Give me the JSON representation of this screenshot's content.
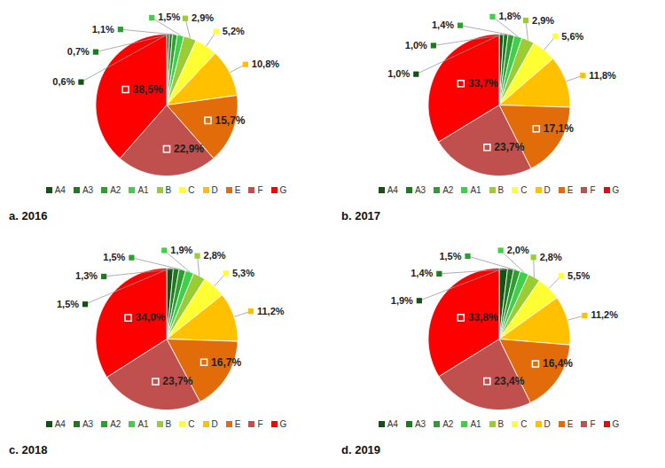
{
  "chart_data": [
    {
      "type": "pie",
      "title": "a. 2016",
      "categories": [
        "A4",
        "A3",
        "A2",
        "A1",
        "B",
        "C",
        "D",
        "E",
        "F",
        "G"
      ],
      "values": [
        0.6,
        0.7,
        1.1,
        1.5,
        2.9,
        5.2,
        10.8,
        15.7,
        22.9,
        38.5
      ],
      "value_labels": [
        "0,6%",
        "0,7%",
        "1,1%",
        "1,5%",
        "2,9%",
        "5,2%",
        "10,8%",
        "15,7%",
        "22,9%",
        "38,5%"
      ],
      "colors": [
        "#145214",
        "#1e7a1e",
        "#2e9e2e",
        "#3fd04a",
        "#9acd32",
        "#ffff33",
        "#ffc000",
        "#e36c0a",
        "#c0504d",
        "#ff0000"
      ],
      "data_labels": true,
      "legend": "bottom"
    },
    {
      "type": "pie",
      "title": "b. 2017",
      "categories": [
        "A4",
        "A3",
        "A2",
        "A1",
        "B",
        "C",
        "D",
        "E",
        "F",
        "G"
      ],
      "values": [
        1.0,
        1.0,
        1.4,
        1.8,
        2.9,
        5.6,
        11.8,
        17.1,
        23.7,
        33.7
      ],
      "value_labels": [
        "1,0%",
        "1,0%",
        "1,4%",
        "1,8%",
        "2,9%",
        "5,6%",
        "11,8%",
        "17,1%",
        "23,7%",
        "33,7%"
      ],
      "colors": [
        "#145214",
        "#1e7a1e",
        "#2e9e2e",
        "#3fd04a",
        "#9acd32",
        "#ffff33",
        "#ffc000",
        "#e36c0a",
        "#c0504d",
        "#ff0000"
      ],
      "data_labels": true,
      "legend": "bottom"
    },
    {
      "type": "pie",
      "title": "c. 2018",
      "categories": [
        "A4",
        "A3",
        "A2",
        "A1",
        "B",
        "C",
        "D",
        "E",
        "F",
        "G"
      ],
      "values": [
        1.5,
        1.3,
        1.5,
        1.9,
        2.8,
        5.3,
        11.2,
        16.7,
        23.7,
        34.0
      ],
      "value_labels": [
        "1,5%",
        "1,3%",
        "1,5%",
        "1,9%",
        "2,8%",
        "5,3%",
        "11,2%",
        "16,7%",
        "23,7%",
        "34,0%"
      ],
      "colors": [
        "#145214",
        "#1e7a1e",
        "#2e9e2e",
        "#3fd04a",
        "#9acd32",
        "#ffff33",
        "#ffc000",
        "#e36c0a",
        "#c0504d",
        "#ff0000"
      ],
      "data_labels": true,
      "legend": "bottom"
    },
    {
      "type": "pie",
      "title": "d. 2019",
      "categories": [
        "A4",
        "A3",
        "A2",
        "A1",
        "B",
        "C",
        "D",
        "E",
        "F",
        "G"
      ],
      "values": [
        1.9,
        1.4,
        1.5,
        2.0,
        2.8,
        5.5,
        11.2,
        16.4,
        23.4,
        33.8
      ],
      "value_labels": [
        "1,9%",
        "1,4%",
        "1,5%",
        "2,0%",
        "2,8%",
        "5,5%",
        "11,2%",
        "16,4%",
        "23,4%",
        "33,8%"
      ],
      "colors": [
        "#145214",
        "#1e7a1e",
        "#2e9e2e",
        "#3fd04a",
        "#9acd32",
        "#ffff33",
        "#ffc000",
        "#e36c0a",
        "#c0504d",
        "#ff0000"
      ],
      "data_labels": true,
      "legend": "bottom"
    }
  ]
}
